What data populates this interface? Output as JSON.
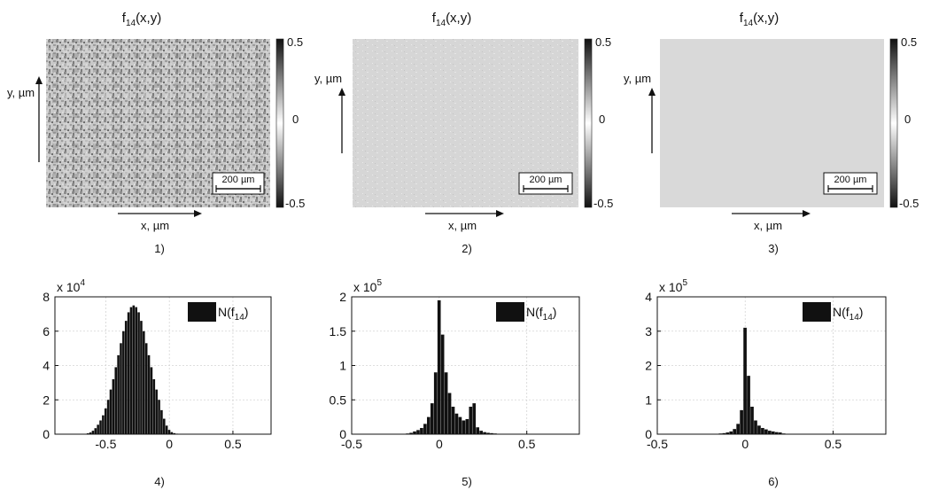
{
  "maps": [
    {
      "title_main": "f",
      "title_sub": "14",
      "title_rest": "(x,y)",
      "ylabel": "y, µm",
      "xlabel": "x, µm",
      "scalebar": "200 µm",
      "colorbar_ticks": [
        "0.5",
        "0",
        "-0.5"
      ],
      "caption": "1)"
    },
    {
      "title_main": "f",
      "title_sub": "14",
      "title_rest": "(x,y)",
      "ylabel": "y, µm",
      "xlabel": "x, µm",
      "scalebar": "200 µm",
      "colorbar_ticks": [
        "0.5",
        "0",
        "-0.5"
      ],
      "caption": "2)"
    },
    {
      "title_main": "f",
      "title_sub": "14",
      "title_rest": "(x,y)",
      "ylabel": "y, µm",
      "xlabel": "x, µm",
      "scalebar": "200 µm",
      "colorbar_ticks": [
        "0.5",
        "0",
        "-0.5"
      ],
      "caption": "3)"
    }
  ],
  "chart_data": [
    {
      "type": "bar",
      "caption": "4)",
      "legend": "N(f14)",
      "legend_main": "N(f",
      "legend_sub": "14",
      "legend_close": ")",
      "multiplier_base": "x 10",
      "multiplier_exp": "4",
      "xlim": [
        -0.9,
        0.8
      ],
      "ylim": [
        0,
        8
      ],
      "xticks": [
        -0.5,
        0,
        0.5
      ],
      "xtick_labels": [
        "-0.5",
        "0",
        "0.5"
      ],
      "yticks": [
        0,
        2,
        4,
        6,
        8
      ],
      "ytick_labels": [
        "0",
        "2",
        "4",
        "6",
        "8"
      ],
      "grid": true,
      "x": [
        -0.64,
        -0.62,
        -0.6,
        -0.58,
        -0.56,
        -0.54,
        -0.52,
        -0.5,
        -0.48,
        -0.46,
        -0.44,
        -0.42,
        -0.4,
        -0.38,
        -0.36,
        -0.34,
        -0.32,
        -0.3,
        -0.28,
        -0.26,
        -0.24,
        -0.22,
        -0.2,
        -0.18,
        -0.16,
        -0.14,
        -0.12,
        -0.1,
        -0.08,
        -0.06,
        -0.04,
        -0.02,
        0.0,
        0.02,
        0.04,
        0.06,
        0.08
      ],
      "values": [
        0.05,
        0.1,
        0.2,
        0.35,
        0.55,
        0.8,
        1.1,
        1.5,
        2.0,
        2.6,
        3.2,
        3.9,
        4.6,
        5.3,
        6.0,
        6.6,
        7.1,
        7.4,
        7.5,
        7.4,
        7.1,
        6.6,
        6.0,
        5.3,
        4.6,
        3.9,
        3.2,
        2.6,
        2.0,
        1.4,
        0.9,
        0.5,
        0.25,
        0.12,
        0.06,
        0.03,
        0.02
      ]
    },
    {
      "type": "bar",
      "caption": "5)",
      "legend": "N(f14)",
      "legend_main": "N(f",
      "legend_sub": "14",
      "legend_close": ")",
      "multiplier_base": "x 10",
      "multiplier_exp": "5",
      "xlim": [
        -0.5,
        0.8
      ],
      "ylim": [
        0,
        2
      ],
      "xticks": [
        -0.5,
        0,
        0.5
      ],
      "xtick_labels": [
        "-0.5",
        "0",
        "0.5"
      ],
      "yticks": [
        0,
        0.5,
        1,
        1.5,
        2
      ],
      "ytick_labels": [
        "0",
        "0.5",
        "1",
        "1.5",
        "2"
      ],
      "grid": true,
      "x": [
        -0.2,
        -0.18,
        -0.16,
        -0.14,
        -0.12,
        -0.1,
        -0.08,
        -0.06,
        -0.04,
        -0.02,
        0.0,
        0.02,
        0.04,
        0.06,
        0.08,
        0.1,
        0.12,
        0.14,
        0.16,
        0.18,
        0.2,
        0.22,
        0.24,
        0.26,
        0.28,
        0.3,
        0.32,
        0.34
      ],
      "values": [
        0.005,
        0.01,
        0.02,
        0.04,
        0.06,
        0.09,
        0.15,
        0.25,
        0.45,
        0.9,
        1.95,
        1.45,
        0.9,
        0.6,
        0.4,
        0.3,
        0.25,
        0.2,
        0.22,
        0.4,
        0.45,
        0.1,
        0.05,
        0.03,
        0.02,
        0.015,
        0.01,
        0.005
      ]
    },
    {
      "type": "bar",
      "caption": "6)",
      "legend": "N(f14)",
      "legend_main": "N(f",
      "legend_sub": "14",
      "legend_close": ")",
      "multiplier_base": "x 10",
      "multiplier_exp": "5",
      "xlim": [
        -0.5,
        0.8
      ],
      "ylim": [
        0,
        4
      ],
      "xticks": [
        -0.5,
        0,
        0.5
      ],
      "xtick_labels": [
        "-0.5",
        "0",
        "0.5"
      ],
      "yticks": [
        0,
        1,
        2,
        3,
        4
      ],
      "ytick_labels": [
        "0",
        "1",
        "2",
        "3",
        "4"
      ],
      "grid": true,
      "x": [
        -0.16,
        -0.14,
        -0.12,
        -0.1,
        -0.08,
        -0.06,
        -0.04,
        -0.02,
        0.0,
        0.02,
        0.04,
        0.06,
        0.08,
        0.1,
        0.12,
        0.14,
        0.16,
        0.18,
        0.2,
        0.22
      ],
      "values": [
        0.01,
        0.02,
        0.03,
        0.05,
        0.08,
        0.15,
        0.3,
        0.7,
        3.1,
        1.7,
        0.8,
        0.4,
        0.25,
        0.18,
        0.14,
        0.1,
        0.08,
        0.06,
        0.05,
        0.02
      ]
    }
  ]
}
